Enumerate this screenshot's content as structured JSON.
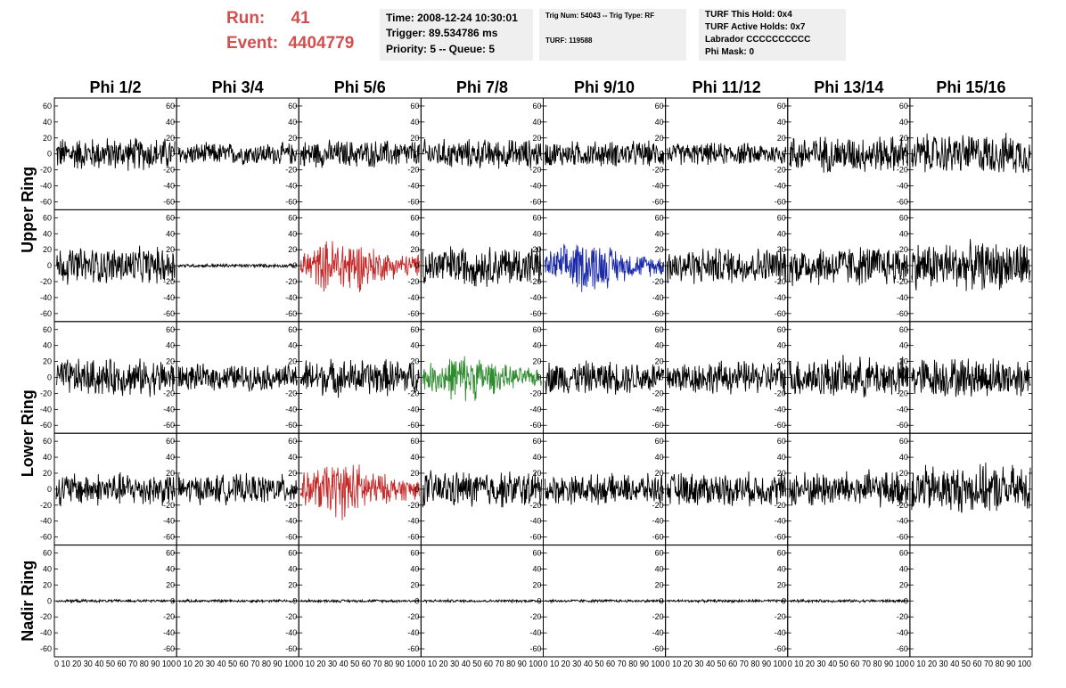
{
  "header": {
    "run_label": "Run:",
    "run_value": "41",
    "event_label": "Event:",
    "event_value": "4404779",
    "box1": {
      "time": "Time: 2008-12-24 10:30:01",
      "trigger": "Trigger: 89.534786 ms",
      "priority": "Priority: 5 -- Queue: 5"
    },
    "box2": {
      "trig": "Trig Num: 54043 -- Trig Type: RF",
      "turf": "TURF: 119588"
    },
    "box3": {
      "hold": "TURF This Hold: 0x4",
      "active": "TURF Active Holds: 0x7",
      "labrador": "Labrador CCCCCCCCCC",
      "mask": "Phi Mask: 0"
    }
  },
  "colors": {
    "title_red": "#d05050",
    "trace_default": "#000000",
    "trace_red": "#c62828",
    "trace_blue": "#1a2aa8",
    "trace_green": "#2e8b2e",
    "info_bg": "#efefef"
  },
  "chart_data": {
    "type": "line",
    "columns": [
      "Phi 1/2",
      "Phi 3/4",
      "Phi 5/6",
      "Phi 7/8",
      "Phi 9/10",
      "Phi 11/12",
      "Phi 13/14",
      "Phi 15/16"
    ],
    "row_labels": [
      "Upper Ring",
      "Lower Ring",
      "Nadir Ring"
    ],
    "rows": 5,
    "ylim": [
      -70,
      70
    ],
    "yticks": [
      -60,
      -40,
      -20,
      0,
      20,
      40,
      60
    ],
    "xlim": [
      0,
      100
    ],
    "xticks": [
      0,
      10,
      20,
      30,
      40,
      50,
      60,
      70,
      80,
      90,
      100
    ],
    "x_tick_text": "0 10 20 30 40 50 60 70 80 90 100",
    "waveforms": [
      [
        {
          "amp": 18,
          "color": "trace_default"
        },
        {
          "amp": 12,
          "color": "trace_default"
        },
        {
          "amp": 15,
          "color": "trace_default"
        },
        {
          "amp": 16,
          "color": "trace_default"
        },
        {
          "amp": 14,
          "color": "trace_default"
        },
        {
          "amp": 12,
          "color": "trace_default"
        },
        {
          "amp": 20,
          "color": "trace_default"
        },
        {
          "amp": 22,
          "color": "trace_default"
        }
      ],
      [
        {
          "amp": 20,
          "color": "trace_default"
        },
        {
          "amp": 2,
          "color": "trace_default"
        },
        {
          "amp": 22,
          "color": "trace_red",
          "burst": true
        },
        {
          "amp": 22,
          "color": "trace_default"
        },
        {
          "amp": 20,
          "color": "trace_blue",
          "burst": true
        },
        {
          "amp": 20,
          "color": "trace_default"
        },
        {
          "amp": 22,
          "color": "trace_default"
        },
        {
          "amp": 26,
          "color": "trace_default"
        }
      ],
      [
        {
          "amp": 20,
          "color": "trace_default"
        },
        {
          "amp": 14,
          "color": "trace_default"
        },
        {
          "amp": 20,
          "color": "trace_default"
        },
        {
          "amp": 18,
          "color": "trace_green",
          "burst": true
        },
        {
          "amp": 18,
          "color": "trace_default"
        },
        {
          "amp": 18,
          "color": "trace_default"
        },
        {
          "amp": 22,
          "color": "trace_default"
        },
        {
          "amp": 22,
          "color": "trace_default"
        }
      ],
      [
        {
          "amp": 18,
          "color": "trace_default"
        },
        {
          "amp": 16,
          "color": "trace_default"
        },
        {
          "amp": 22,
          "color": "trace_red",
          "burst": true
        },
        {
          "amp": 20,
          "color": "trace_default"
        },
        {
          "amp": 16,
          "color": "trace_default"
        },
        {
          "amp": 18,
          "color": "trace_default"
        },
        {
          "amp": 20,
          "color": "trace_default"
        },
        {
          "amp": 26,
          "color": "trace_default"
        }
      ],
      [
        {
          "amp": 1.5,
          "color": "trace_default"
        },
        {
          "amp": 1.5,
          "color": "trace_default"
        },
        {
          "amp": 1.5,
          "color": "trace_default"
        },
        {
          "amp": 1.5,
          "color": "trace_default"
        },
        {
          "amp": 1.5,
          "color": "trace_default"
        },
        {
          "amp": 1.5,
          "color": "trace_default"
        },
        {
          "amp": 1.5,
          "color": "trace_default"
        },
        null
      ]
    ]
  }
}
